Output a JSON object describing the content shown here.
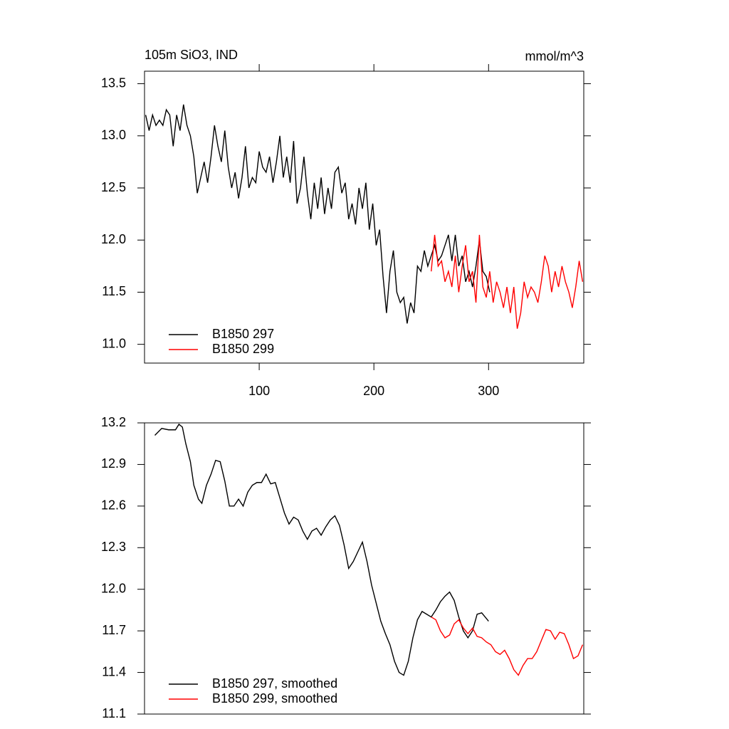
{
  "chart_data": [
    {
      "type": "line",
      "title": "105m SiO3, IND",
      "unit_label": "mmol/m^3",
      "xlim": [
        0,
        383
      ],
      "xticks": [
        100,
        200,
        300
      ],
      "ylim": [
        10.82,
        13.62
      ],
      "yticks": [
        {
          "value": 11.0,
          "label": "11.0"
        },
        11.5,
        {
          "value": 12.0,
          "label": "12.0"
        },
        12.5,
        {
          "value": 13.0,
          "label": "13.0"
        },
        13.5
      ],
      "series": [
        {
          "name": "B1850 297",
          "color": "#000000",
          "x": [
            1,
            4,
            7,
            10,
            13,
            16,
            19,
            22,
            25,
            28,
            31,
            34,
            37,
            40,
            43,
            46,
            49,
            52,
            55,
            58,
            61,
            64,
            67,
            70,
            73,
            76,
            79,
            82,
            85,
            88,
            91,
            94,
            97,
            100,
            103,
            106,
            109,
            112,
            115,
            118,
            121,
            124,
            127,
            130,
            133,
            136,
            139,
            142,
            145,
            148,
            151,
            154,
            157,
            160,
            163,
            166,
            169,
            172,
            175,
            178,
            181,
            184,
            187,
            190,
            193,
            196,
            199,
            202,
            205,
            208,
            211,
            214,
            217,
            220,
            223,
            226,
            229,
            232,
            235,
            238,
            241,
            244,
            247,
            250,
            253,
            256,
            259,
            262,
            265,
            268,
            271,
            274,
            277,
            280,
            283,
            286,
            289,
            292,
            295,
            298,
            301
          ],
          "values": [
            13.2,
            13.05,
            13.2,
            13.1,
            13.15,
            13.1,
            13.25,
            13.2,
            12.9,
            13.2,
            13.05,
            13.3,
            13.1,
            13.0,
            12.8,
            12.45,
            12.6,
            12.75,
            12.55,
            12.8,
            13.1,
            12.9,
            12.75,
            13.05,
            12.7,
            12.5,
            12.65,
            12.4,
            12.6,
            12.9,
            12.5,
            12.6,
            12.55,
            12.85,
            12.7,
            12.65,
            12.8,
            12.55,
            12.75,
            13.0,
            12.6,
            12.8,
            12.55,
            12.95,
            12.35,
            12.5,
            12.8,
            12.45,
            12.2,
            12.55,
            12.3,
            12.6,
            12.25,
            12.5,
            12.3,
            12.65,
            12.7,
            12.45,
            12.55,
            12.2,
            12.35,
            12.15,
            12.5,
            12.3,
            12.55,
            12.1,
            12.35,
            11.95,
            12.1,
            11.65,
            11.3,
            11.7,
            11.9,
            11.5,
            11.4,
            11.45,
            11.2,
            11.4,
            11.3,
            11.75,
            11.7,
            11.9,
            11.75,
            11.85,
            11.95,
            11.8,
            11.85,
            11.95,
            12.05,
            11.8,
            12.05,
            11.75,
            11.85,
            11.6,
            11.7,
            11.55,
            11.75,
            12.0,
            11.7,
            11.65,
            11.5
          ]
        },
        {
          "name": "B1850 299",
          "color": "#ff0000",
          "x": [
            250,
            253,
            256,
            259,
            262,
            265,
            268,
            271,
            274,
            277,
            280,
            283,
            286,
            289,
            292,
            295,
            298,
            301,
            304,
            307,
            310,
            313,
            316,
            319,
            322,
            325,
            328,
            331,
            334,
            337,
            340,
            343,
            346,
            349,
            352,
            355,
            358,
            361,
            364,
            367,
            370,
            373,
            376,
            379,
            382
          ],
          "values": [
            11.7,
            12.05,
            11.75,
            11.8,
            11.6,
            11.7,
            11.55,
            11.85,
            11.5,
            11.75,
            11.95,
            11.6,
            11.7,
            11.4,
            12.05,
            11.55,
            11.45,
            11.7,
            11.4,
            11.6,
            11.5,
            11.35,
            11.55,
            11.3,
            11.55,
            11.15,
            11.3,
            11.6,
            11.45,
            11.55,
            11.5,
            11.4,
            11.6,
            11.85,
            11.75,
            11.5,
            11.7,
            11.55,
            11.75,
            11.6,
            11.5,
            11.35,
            11.55,
            11.8,
            11.6
          ]
        }
      ]
    },
    {
      "type": "line",
      "xlim": [
        0,
        383
      ],
      "ylim": [
        11.1,
        13.2
      ],
      "yticks": [
        11.1,
        11.4,
        11.7,
        {
          "value": 12.0,
          "label": "12.0"
        },
        12.3,
        12.6,
        12.9,
        13.2
      ],
      "series": [
        {
          "name": "B1850 297, smoothed",
          "color": "#000000",
          "x": [
            9,
            15,
            21,
            27,
            30,
            33,
            36,
            40,
            43,
            47,
            50,
            54,
            58,
            62,
            66,
            70,
            74,
            78,
            82,
            86,
            90,
            94,
            98,
            102,
            106,
            110,
            114,
            118,
            122,
            126,
            130,
            134,
            138,
            142,
            146,
            150,
            154,
            158,
            162,
            166,
            170,
            174,
            178,
            182,
            186,
            190,
            194,
            198,
            202,
            206,
            210,
            214,
            218,
            222,
            226,
            230,
            234,
            238,
            242,
            246,
            250,
            254,
            258,
            262,
            266,
            270,
            274,
            278,
            282,
            286,
            290,
            294,
            297,
            300
          ],
          "values": [
            13.11,
            13.16,
            13.15,
            13.15,
            13.19,
            13.17,
            13.05,
            12.92,
            12.75,
            12.65,
            12.62,
            12.75,
            12.83,
            12.93,
            12.92,
            12.78,
            12.6,
            12.6,
            12.65,
            12.6,
            12.7,
            12.75,
            12.77,
            12.77,
            12.83,
            12.76,
            12.77,
            12.66,
            12.55,
            12.47,
            12.52,
            12.5,
            12.42,
            12.36,
            12.42,
            12.44,
            12.39,
            12.45,
            12.5,
            12.53,
            12.46,
            12.32,
            12.15,
            12.2,
            12.27,
            12.34,
            12.2,
            12.03,
            11.9,
            11.77,
            11.68,
            11.6,
            11.48,
            11.4,
            11.38,
            11.48,
            11.65,
            11.78,
            11.84,
            11.82,
            11.8,
            11.85,
            11.91,
            11.95,
            11.98,
            11.92,
            11.8,
            11.7,
            11.65,
            11.7,
            11.82,
            11.83,
            11.8,
            11.77
          ]
        },
        {
          "name": "B1850 299, smoothed",
          "color": "#ff0000",
          "x": [
            250,
            254,
            258,
            262,
            266,
            270,
            274,
            278,
            282,
            286,
            290,
            294,
            298,
            302,
            306,
            310,
            314,
            318,
            322,
            326,
            330,
            334,
            338,
            342,
            346,
            350,
            354,
            358,
            362,
            366,
            370,
            374,
            378,
            382
          ],
          "values": [
            11.8,
            11.78,
            11.7,
            11.65,
            11.67,
            11.75,
            11.78,
            11.72,
            11.68,
            11.72,
            11.66,
            11.65,
            11.62,
            11.6,
            11.55,
            11.53,
            11.56,
            11.5,
            11.42,
            11.38,
            11.45,
            11.5,
            11.5,
            11.55,
            11.63,
            11.71,
            11.7,
            11.64,
            11.69,
            11.68,
            11.6,
            11.5,
            11.52,
            11.6
          ]
        }
      ]
    }
  ]
}
